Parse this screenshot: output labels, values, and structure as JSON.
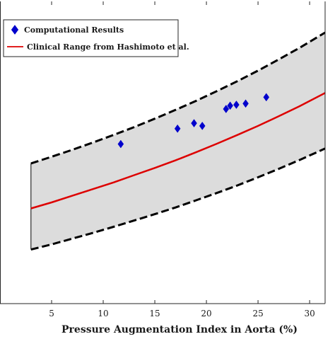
{
  "chart_data": {
    "type": "line",
    "title": "",
    "xlabel": "Pressure Augmentation Index in Aorta (%)",
    "ylabel": "",
    "xlim": [
      0,
      31.5
    ],
    "ylim": [
      0,
      1
    ],
    "x_ticks": [
      5,
      10,
      15,
      20,
      25,
      30
    ],
    "grid": false,
    "legend_position": "top-left",
    "series": [
      {
        "name": "Computational Results",
        "kind": "scatter",
        "marker": "diamond",
        "color": "#0000cc",
        "x": [
          11.7,
          17.2,
          18.8,
          19.6,
          21.9,
          22.3,
          22.9,
          23.8,
          25.8
        ],
        "y": [
          0.528,
          0.579,
          0.597,
          0.588,
          0.644,
          0.655,
          0.658,
          0.662,
          0.683
        ]
      },
      {
        "name": "Clinical Range from Hashimoto et al.",
        "kind": "line",
        "color": "#dd0000",
        "x": [
          3,
          5,
          7,
          9,
          11,
          13,
          15,
          17,
          19,
          21,
          23,
          25,
          27,
          29,
          31.5
        ],
        "y": [
          0.315,
          0.335,
          0.357,
          0.379,
          0.401,
          0.425,
          0.449,
          0.474,
          0.501,
          0.529,
          0.558,
          0.588,
          0.62,
          0.653,
          0.697
        ]
      },
      {
        "kind": "band-upper",
        "color": "#000000",
        "x": [
          3,
          5,
          7,
          9,
          11,
          13,
          15,
          17,
          19,
          21,
          23,
          25,
          27,
          29,
          31.5
        ],
        "y": [
          0.464,
          0.486,
          0.509,
          0.533,
          0.558,
          0.584,
          0.612,
          0.641,
          0.671,
          0.703,
          0.736,
          0.771,
          0.808,
          0.846,
          0.897
        ]
      },
      {
        "kind": "band-lower",
        "color": "#000000",
        "x": [
          3,
          5,
          7,
          9,
          11,
          13,
          15,
          17,
          19,
          21,
          23,
          25,
          27,
          29,
          31.5
        ],
        "y": [
          0.179,
          0.196,
          0.215,
          0.234,
          0.254,
          0.275,
          0.296,
          0.318,
          0.342,
          0.366,
          0.391,
          0.418,
          0.446,
          0.475,
          0.513
        ]
      }
    ],
    "band_fill": "#dcdcdc"
  }
}
